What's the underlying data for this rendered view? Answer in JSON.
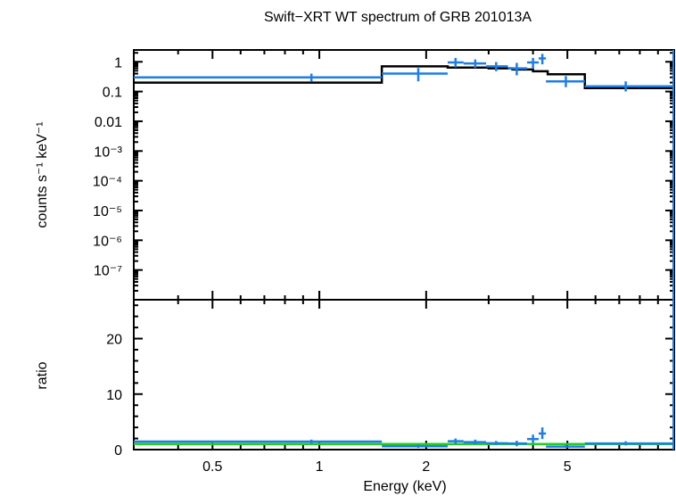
{
  "chart_data": [
    {
      "panel": "spectrum",
      "type": "line",
      "title": "Swift−XRT WT spectrum of GRB 201013A",
      "ylabel": "counts s⁻¹ keV⁻¹",
      "xlabel": "",
      "x_scale": "log",
      "y_scale": "log",
      "xlim": [
        0.3,
        10
      ],
      "ylim": [
        1e-08,
        2.5
      ],
      "y_ticks": [
        {
          "value": 1,
          "label": "1"
        },
        {
          "value": 0.1,
          "label": "0.1"
        },
        {
          "value": 0.01,
          "label": "0.01"
        },
        {
          "value": 0.001,
          "label": "10⁻³"
        },
        {
          "value": 0.0001,
          "label": "10⁻⁴"
        },
        {
          "value": 1e-05,
          "label": "10⁻⁵"
        },
        {
          "value": 1e-06,
          "label": "10⁻⁶"
        },
        {
          "value": 1e-07,
          "label": "10⁻⁷"
        }
      ],
      "grid": false,
      "series": [
        {
          "kind": "data",
          "color": "#1e7ee8",
          "points": [
            {
              "xlo": 0.3,
              "xhi": 1.5,
              "x": 0.95,
              "y": 0.3,
              "ylo": 0.22,
              "yhi": 0.4
            },
            {
              "xlo": 1.5,
              "xhi": 2.3,
              "x": 1.9,
              "y": 0.4,
              "ylo": 0.22,
              "yhi": 0.62
            },
            {
              "xlo": 2.3,
              "xhi": 2.55,
              "x": 2.42,
              "y": 0.95,
              "ylo": 0.65,
              "yhi": 1.35
            },
            {
              "xlo": 2.55,
              "xhi": 2.95,
              "x": 2.75,
              "y": 0.88,
              "ylo": 0.62,
              "yhi": 1.2
            },
            {
              "xlo": 2.95,
              "xhi": 3.4,
              "x": 3.15,
              "y": 0.7,
              "ylo": 0.48,
              "yhi": 0.98
            },
            {
              "xlo": 3.4,
              "xhi": 3.85,
              "x": 3.6,
              "y": 0.6,
              "ylo": 0.35,
              "yhi": 0.92
            },
            {
              "xlo": 3.85,
              "xhi": 4.15,
              "x": 4.0,
              "y": 0.95,
              "ylo": 0.58,
              "yhi": 1.35
            },
            {
              "xlo": 4.15,
              "xhi": 4.35,
              "x": 4.25,
              "y": 1.3,
              "ylo": 0.82,
              "yhi": 1.85
            },
            {
              "xlo": 4.35,
              "xhi": 5.6,
              "x": 4.95,
              "y": 0.22,
              "ylo": 0.14,
              "yhi": 0.33
            },
            {
              "xlo": 5.6,
              "xhi": 10,
              "x": 7.3,
              "y": 0.15,
              "ylo": 0.1,
              "yhi": 0.22
            }
          ]
        },
        {
          "kind": "model",
          "color": "#000000",
          "steps": [
            {
              "xlo": 0.3,
              "xhi": 1.5,
              "y": 0.2
            },
            {
              "xlo": 1.5,
              "xhi": 2.3,
              "y": 0.7
            },
            {
              "xlo": 2.3,
              "xhi": 3.0,
              "y": 0.64
            },
            {
              "xlo": 3.0,
              "xhi": 3.5,
              "y": 0.6
            },
            {
              "xlo": 3.5,
              "xhi": 4.0,
              "y": 0.55
            },
            {
              "xlo": 4.0,
              "xhi": 4.4,
              "y": 0.48
            },
            {
              "xlo": 4.4,
              "xhi": 5.6,
              "y": 0.38
            },
            {
              "xlo": 5.6,
              "xhi": 10,
              "y": 0.13
            }
          ]
        }
      ]
    },
    {
      "panel": "ratio",
      "type": "line",
      "xlabel": "Energy (keV)",
      "ylabel": "ratio",
      "x_scale": "log",
      "y_scale": "linear",
      "xlim": [
        0.3,
        10
      ],
      "ylim": [
        0,
        27
      ],
      "x_ticks": [
        {
          "value": 0.5,
          "label": "0.5"
        },
        {
          "value": 1,
          "label": "1"
        },
        {
          "value": 2,
          "label": "2"
        },
        {
          "value": 5,
          "label": "5"
        }
      ],
      "y_ticks": [
        {
          "value": 0,
          "label": "0"
        },
        {
          "value": 10,
          "label": "10"
        },
        {
          "value": 20,
          "label": "20"
        }
      ],
      "grid": false,
      "reference_line": {
        "y": 1,
        "color": "#22cc22"
      },
      "series": [
        {
          "kind": "data",
          "color": "#1e7ee8",
          "points": [
            {
              "xlo": 0.3,
              "xhi": 1.5,
              "x": 0.95,
              "y": 1.45,
              "ylo": 1.1,
              "yhi": 1.8
            },
            {
              "xlo": 1.5,
              "xhi": 2.3,
              "x": 1.9,
              "y": 0.6,
              "ylo": 0.3,
              "yhi": 0.9
            },
            {
              "xlo": 2.3,
              "xhi": 2.55,
              "x": 2.42,
              "y": 1.5,
              "ylo": 1.0,
              "yhi": 2.0
            },
            {
              "xlo": 2.55,
              "xhi": 2.95,
              "x": 2.75,
              "y": 1.35,
              "ylo": 0.95,
              "yhi": 1.8
            },
            {
              "xlo": 2.95,
              "xhi": 3.4,
              "x": 3.15,
              "y": 1.15,
              "ylo": 0.8,
              "yhi": 1.55
            },
            {
              "xlo": 3.4,
              "xhi": 3.85,
              "x": 3.6,
              "y": 1.1,
              "ylo": 0.6,
              "yhi": 1.6
            },
            {
              "xlo": 3.85,
              "xhi": 4.15,
              "x": 4.0,
              "y": 1.9,
              "ylo": 1.2,
              "yhi": 2.7
            },
            {
              "xlo": 4.15,
              "xhi": 4.35,
              "x": 4.25,
              "y": 2.9,
              "ylo": 1.9,
              "yhi": 4.0
            },
            {
              "xlo": 4.35,
              "xhi": 5.6,
              "x": 4.95,
              "y": 0.55,
              "ylo": 0.3,
              "yhi": 0.85
            },
            {
              "xlo": 5.6,
              "xhi": 10,
              "x": 7.3,
              "y": 1.1,
              "ylo": 0.75,
              "yhi": 1.5
            }
          ]
        }
      ]
    }
  ]
}
